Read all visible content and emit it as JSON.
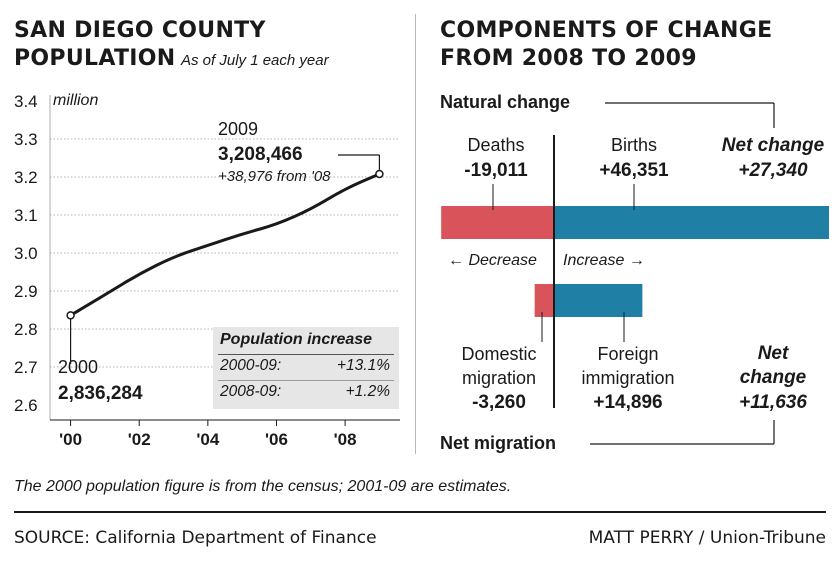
{
  "left_panel": {
    "title_line1": "SAN DIEGO COUNTY",
    "title_line2": "POPULATION",
    "subtitle": "As of July 1 each year",
    "unit_label": "million",
    "callout_2009": {
      "year": "2009",
      "value": "3,208,466",
      "delta": "+38,976 from '08"
    },
    "callout_2000": {
      "year": "2000",
      "value": "2,836,284"
    },
    "increase_box": {
      "title": "Population increase",
      "rows": [
        {
          "period": "2000-09:",
          "value": "+13.1%"
        },
        {
          "period": "2008-09:",
          "value": "+1.2%"
        }
      ]
    }
  },
  "chart_data": [
    {
      "type": "line",
      "title": "SAN DIEGO COUNTY POPULATION",
      "subtitle": "As of July 1 each year",
      "x_ticks": [
        "'00",
        "'02",
        "'04",
        "'06",
        "'08"
      ],
      "y_ticks": [
        "3.4",
        "3.3",
        "3.2",
        "3.1",
        "3.0",
        "2.9",
        "2.8",
        "2.7",
        "2.6"
      ],
      "ylim": [
        2.6,
        3.4
      ],
      "xlim": [
        1999.4,
        2009.6
      ],
      "x": [
        2000,
        2001,
        2002,
        2003,
        2004,
        2005,
        2006,
        2007,
        2008,
        2009
      ],
      "y": [
        2.836,
        2.89,
        2.945,
        2.99,
        3.02,
        3.05,
        3.075,
        3.115,
        3.169,
        3.208
      ],
      "grid": "horizontal",
      "line_color": "#1a1a1a"
    },
    {
      "type": "bar",
      "title": "COMPONENTS OF CHANGE FROM 2008 TO 2009",
      "orientation": "horizontal-diverging",
      "categories": [
        "Natural change",
        "Net migration"
      ],
      "series": [
        {
          "name": "Decrease",
          "color": "#d9535b",
          "values": [
            -19011,
            -3260
          ]
        },
        {
          "name": "Increase",
          "color": "#1f7fa5",
          "values": [
            46351,
            14896
          ]
        }
      ]
    }
  ],
  "right_panel": {
    "title_line1": "COMPONENTS OF CHANGE",
    "title_line2": "FROM 2008 TO 2009",
    "natural_change_label": "Natural change",
    "deaths_label": "Deaths",
    "deaths_value": "-19,011",
    "births_label": "Births",
    "births_value": "+46,351",
    "net_change_label_1": "Net change",
    "net_change_value_1": "+27,340",
    "decrease_label": "Decrease",
    "increase_label": "Increase",
    "domestic_label_1": "Domestic",
    "domestic_label_2": "migration",
    "domestic_value": "-3,260",
    "foreign_label_1": "Foreign",
    "foreign_label_2": "immigration",
    "foreign_value": "+14,896",
    "net_change_label_2a": "Net",
    "net_change_label_2b": "change",
    "net_change_value_2": "+11,636",
    "net_migration_label": "Net migration",
    "colors": {
      "decrease": "#d9535b",
      "increase": "#1f7fa5"
    }
  },
  "footnote": "The 2000 population figure is from the census; 2001-09 are estimates.",
  "source": "SOURCE: California Department of Finance",
  "credit": "MATT PERRY / Union-Tribune"
}
